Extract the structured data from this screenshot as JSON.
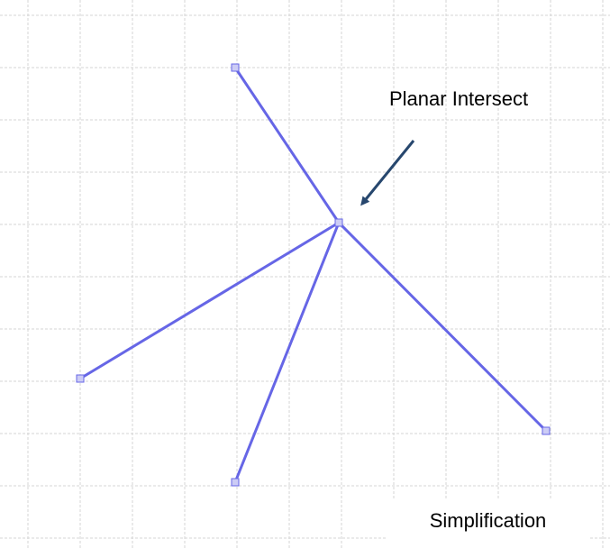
{
  "diagram": {
    "annotation": "Planar Intersect",
    "caption": "Simplification",
    "colors": {
      "background": "#ffffff",
      "grid": "#d6d6d6",
      "edge": "#6666e6",
      "node_fill": "#ccccf5",
      "node_stroke": "#6666e6",
      "arrow": "#27476e"
    },
    "nodes": [
      {
        "id": "center"
      },
      {
        "id": "top"
      },
      {
        "id": "left"
      },
      {
        "id": "bottom"
      },
      {
        "id": "right"
      }
    ],
    "edges": [
      {
        "from": "center",
        "to": "top"
      },
      {
        "from": "center",
        "to": "left"
      },
      {
        "from": "center",
        "to": "bottom"
      },
      {
        "from": "center",
        "to": "right"
      }
    ]
  }
}
